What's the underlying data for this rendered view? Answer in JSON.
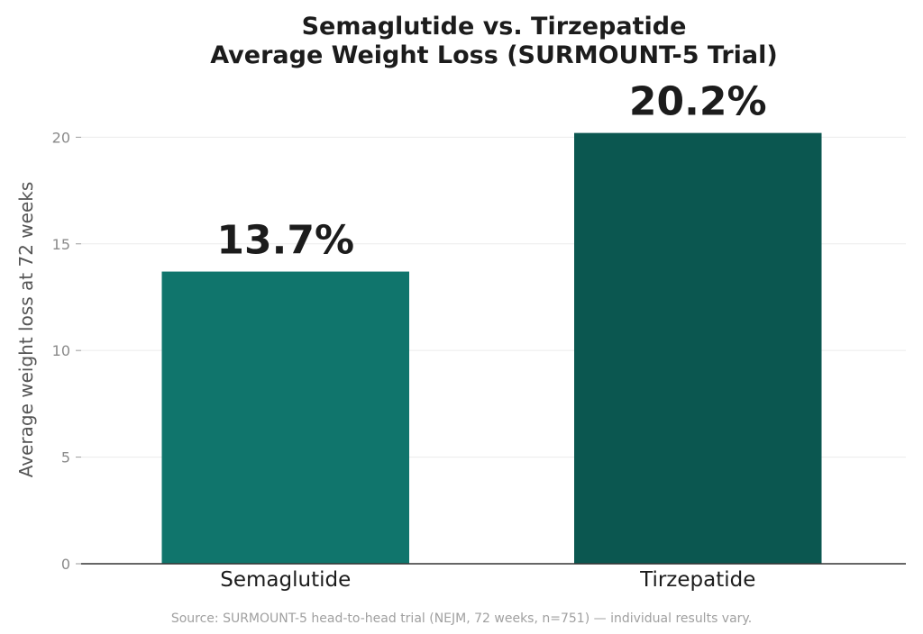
{
  "chart_data": {
    "type": "bar",
    "title": [
      "Semaglutide vs. Tirzepatide",
      "Average Weight Loss (SURMOUNT-5 Trial)"
    ],
    "ylabel": "Average weight loss at 72 weeks",
    "xlabel": "",
    "categories": [
      "Semaglutide",
      "Tirzepatide"
    ],
    "values": [
      13.7,
      20.2
    ],
    "data_labels": [
      "13.7%",
      "20.2%"
    ],
    "colors": [
      "#10756c",
      "#0b5750"
    ],
    "ylim": [
      0,
      22
    ],
    "yticks": [
      0,
      5,
      10,
      15,
      20
    ],
    "ytick_labels": [
      "0",
      "5",
      "10",
      "15",
      "20"
    ],
    "grid": true,
    "legend": "none"
  },
  "source_note": "Source: SURMOUNT-5 head-to-head trial (NEJM, 72 weeks, n=751) — individual results vary."
}
